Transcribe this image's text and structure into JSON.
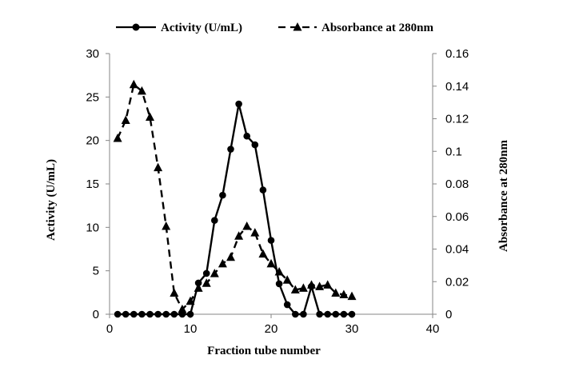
{
  "chart_data": {
    "type": "line",
    "title": "",
    "xlabel": "Fraction tube number",
    "ylabel_left": "Activity (U/mL)",
    "ylabel_right": "Absorbance at 280nm",
    "xlim": [
      0,
      40
    ],
    "ylim_left": [
      0,
      30
    ],
    "ylim_right": [
      0,
      0.16
    ],
    "x_ticks": [
      "0",
      "10",
      "20",
      "30",
      "40"
    ],
    "y_ticks_left": [
      "0",
      "5",
      "10",
      "15",
      "20",
      "25",
      "30"
    ],
    "y_ticks_right": [
      "0",
      "0.02",
      "0.04",
      "0.06",
      "0.08",
      "0.1",
      "0.12",
      "0.14",
      "0.16"
    ],
    "grid": false,
    "legend_position": "top",
    "series": [
      {
        "name": "Activity (U/mL)",
        "axis": "left",
        "style": "solid",
        "marker": "circle",
        "color": "#000000",
        "x": [
          1,
          2,
          3,
          4,
          5,
          6,
          7,
          8,
          9,
          10,
          11,
          12,
          13,
          14,
          15,
          16,
          17,
          18,
          19,
          20,
          21,
          22,
          23,
          24,
          25,
          26,
          27,
          28,
          29,
          30
        ],
        "values": [
          0,
          0,
          0,
          0,
          0,
          0,
          0,
          0,
          0,
          0,
          3.6,
          4.7,
          10.8,
          13.7,
          19,
          24.2,
          20.5,
          19.5,
          14.3,
          8.5,
          3.5,
          1.1,
          0,
          0,
          3.2,
          0,
          0,
          0,
          0,
          0
        ]
      },
      {
        "name": "Absorbance at 280nm",
        "axis": "right",
        "style": "dashed",
        "marker": "triangle",
        "color": "#000000",
        "x": [
          1,
          2,
          3,
          4,
          5,
          6,
          7,
          8,
          9,
          10,
          11,
          12,
          13,
          14,
          15,
          16,
          17,
          18,
          19,
          20,
          21,
          22,
          23,
          24,
          25,
          26,
          27,
          28,
          29,
          30
        ],
        "values": [
          0.108,
          0.119,
          0.141,
          0.137,
          0.121,
          0.09,
          0.054,
          0.013,
          0.003,
          0.008,
          0.016,
          0.019,
          0.025,
          0.031,
          0.035,
          0.048,
          0.054,
          0.05,
          0.037,
          0.031,
          0.026,
          0.021,
          0.015,
          0.016,
          0.018,
          0.017,
          0.018,
          0.013,
          0.012,
          0.011
        ]
      }
    ]
  }
}
